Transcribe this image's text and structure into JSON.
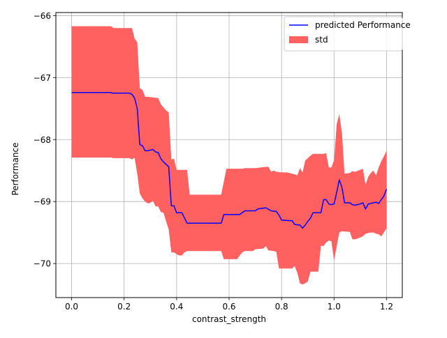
{
  "chart_data": {
    "type": "line",
    "title": "",
    "xlabel": "contrast_strength",
    "ylabel": "Performance",
    "xlim": [
      -0.06,
      1.26
    ],
    "ylim": [
      -70.55,
      -65.95
    ],
    "xticks": [
      0.0,
      0.2,
      0.4,
      0.6,
      0.8,
      1.0,
      1.2
    ],
    "xtick_labels": [
      "0.0",
      "0.2",
      "0.4",
      "0.6",
      "0.8",
      "1.0",
      "1.2"
    ],
    "yticks": [
      -70,
      -69,
      -68,
      -67,
      -66
    ],
    "ytick_labels": [
      "−70",
      "−69",
      "−68",
      "−67",
      "−66"
    ],
    "grid": true,
    "legend_position": "top-right",
    "series": [
      {
        "name": "predicted Performance",
        "kind": "line",
        "color": "#0000ff",
        "points": [
          [
            0.0,
            -67.24
          ],
          [
            0.15,
            -67.24
          ],
          [
            0.155,
            -67.25
          ],
          [
            0.22,
            -67.25
          ],
          [
            0.23,
            -67.27
          ],
          [
            0.24,
            -67.33
          ],
          [
            0.25,
            -67.5
          ],
          [
            0.26,
            -68.08
          ],
          [
            0.27,
            -68.1
          ],
          [
            0.28,
            -68.18
          ],
          [
            0.29,
            -68.18
          ],
          [
            0.31,
            -68.16
          ],
          [
            0.32,
            -68.2
          ],
          [
            0.33,
            -68.21
          ],
          [
            0.34,
            -68.31
          ],
          [
            0.35,
            -68.36
          ],
          [
            0.37,
            -68.44
          ],
          [
            0.38,
            -69.07
          ],
          [
            0.39,
            -69.07
          ],
          [
            0.4,
            -69.18
          ],
          [
            0.42,
            -69.18
          ],
          [
            0.44,
            -69.35
          ],
          [
            0.57,
            -69.35
          ],
          [
            0.58,
            -69.21
          ],
          [
            0.64,
            -69.21
          ],
          [
            0.66,
            -69.15
          ],
          [
            0.7,
            -69.15
          ],
          [
            0.71,
            -69.12
          ],
          [
            0.74,
            -69.1
          ],
          [
            0.76,
            -69.15
          ],
          [
            0.78,
            -69.16
          ],
          [
            0.79,
            -69.22
          ],
          [
            0.8,
            -69.3
          ],
          [
            0.84,
            -69.31
          ],
          [
            0.85,
            -69.37
          ],
          [
            0.87,
            -69.38
          ],
          [
            0.88,
            -69.43
          ],
          [
            0.89,
            -69.38
          ],
          [
            0.9,
            -69.32
          ],
          [
            0.91,
            -69.27
          ],
          [
            0.92,
            -69.18
          ],
          [
            0.95,
            -69.18
          ],
          [
            0.96,
            -68.97
          ],
          [
            0.97,
            -68.97
          ],
          [
            0.98,
            -69.04
          ],
          [
            0.99,
            -69.05
          ],
          [
            1.0,
            -69.04
          ],
          [
            1.01,
            -68.85
          ],
          [
            1.02,
            -68.65
          ],
          [
            1.03,
            -68.77
          ],
          [
            1.04,
            -69.02
          ],
          [
            1.06,
            -69.02
          ],
          [
            1.07,
            -69.05
          ],
          [
            1.08,
            -69.06
          ],
          [
            1.1,
            -69.04
          ],
          [
            1.11,
            -69.02
          ],
          [
            1.12,
            -69.12
          ],
          [
            1.13,
            -69.04
          ],
          [
            1.16,
            -69.01
          ],
          [
            1.17,
            -69.03
          ],
          [
            1.18,
            -68.97
          ],
          [
            1.19,
            -68.91
          ],
          [
            1.2,
            -68.8
          ]
        ]
      },
      {
        "name": "std",
        "kind": "band",
        "color": "#ff6161",
        "upper": [
          [
            0.0,
            -66.17
          ],
          [
            0.15,
            -66.17
          ],
          [
            0.16,
            -66.2
          ],
          [
            0.23,
            -66.2
          ],
          [
            0.24,
            -66.37
          ],
          [
            0.25,
            -66.43
          ],
          [
            0.26,
            -67.17
          ],
          [
            0.27,
            -67.2
          ],
          [
            0.28,
            -67.31
          ],
          [
            0.29,
            -67.31
          ],
          [
            0.31,
            -67.32
          ],
          [
            0.33,
            -67.33
          ],
          [
            0.34,
            -67.43
          ],
          [
            0.36,
            -67.53
          ],
          [
            0.37,
            -67.56
          ],
          [
            0.38,
            -68.32
          ],
          [
            0.39,
            -68.31
          ],
          [
            0.4,
            -68.49
          ],
          [
            0.44,
            -68.49
          ],
          [
            0.45,
            -68.89
          ],
          [
            0.57,
            -68.89
          ],
          [
            0.59,
            -68.47
          ],
          [
            0.65,
            -68.47
          ],
          [
            0.66,
            -68.46
          ],
          [
            0.7,
            -68.46
          ],
          [
            0.74,
            -68.44
          ],
          [
            0.75,
            -68.44
          ],
          [
            0.76,
            -68.52
          ],
          [
            0.77,
            -68.5
          ],
          [
            0.78,
            -68.52
          ],
          [
            0.8,
            -68.53
          ],
          [
            0.82,
            -68.53
          ],
          [
            0.85,
            -68.56
          ],
          [
            0.86,
            -68.58
          ],
          [
            0.87,
            -68.46
          ],
          [
            0.88,
            -68.53
          ],
          [
            0.89,
            -68.34
          ],
          [
            0.91,
            -68.26
          ],
          [
            0.92,
            -68.23
          ],
          [
            0.96,
            -68.23
          ],
          [
            0.97,
            -68.22
          ],
          [
            0.98,
            -68.45
          ],
          [
            0.99,
            -68.45
          ],
          [
            1.0,
            -68.33
          ],
          [
            1.01,
            -67.75
          ],
          [
            1.02,
            -67.59
          ],
          [
            1.03,
            -67.9
          ],
          [
            1.04,
            -68.55
          ],
          [
            1.06,
            -68.54
          ],
          [
            1.07,
            -68.51
          ],
          [
            1.08,
            -68.52
          ],
          [
            1.1,
            -68.49
          ],
          [
            1.11,
            -68.47
          ],
          [
            1.12,
            -68.73
          ],
          [
            1.13,
            -68.6
          ],
          [
            1.14,
            -68.54
          ],
          [
            1.15,
            -68.5
          ],
          [
            1.16,
            -68.58
          ],
          [
            1.17,
            -68.45
          ],
          [
            1.18,
            -68.35
          ],
          [
            1.19,
            -68.27
          ],
          [
            1.2,
            -68.18
          ]
        ],
        "lower": [
          [
            0.0,
            -68.29
          ],
          [
            0.15,
            -68.29
          ],
          [
            0.16,
            -68.3
          ],
          [
            0.22,
            -68.3
          ],
          [
            0.23,
            -68.32
          ],
          [
            0.24,
            -68.29
          ],
          [
            0.25,
            -68.55
          ],
          [
            0.26,
            -68.87
          ],
          [
            0.27,
            -68.95
          ],
          [
            0.28,
            -69.0
          ],
          [
            0.29,
            -69.03
          ],
          [
            0.3,
            -69.02
          ],
          [
            0.31,
            -68.99
          ],
          [
            0.32,
            -69.08
          ],
          [
            0.33,
            -69.08
          ],
          [
            0.34,
            -69.17
          ],
          [
            0.35,
            -69.18
          ],
          [
            0.36,
            -69.32
          ],
          [
            0.37,
            -69.45
          ],
          [
            0.38,
            -69.82
          ],
          [
            0.39,
            -69.82
          ],
          [
            0.4,
            -69.85
          ],
          [
            0.41,
            -69.87
          ],
          [
            0.42,
            -69.87
          ],
          [
            0.43,
            -69.82
          ],
          [
            0.44,
            -69.8
          ],
          [
            0.57,
            -69.8
          ],
          [
            0.58,
            -69.93
          ],
          [
            0.63,
            -69.93
          ],
          [
            0.65,
            -69.82
          ],
          [
            0.66,
            -69.8
          ],
          [
            0.69,
            -69.8
          ],
          [
            0.7,
            -69.77
          ],
          [
            0.73,
            -69.76
          ],
          [
            0.74,
            -69.72
          ],
          [
            0.75,
            -69.79
          ],
          [
            0.77,
            -69.8
          ],
          [
            0.78,
            -69.81
          ],
          [
            0.79,
            -70.08
          ],
          [
            0.84,
            -70.08
          ],
          [
            0.85,
            -70.04
          ],
          [
            0.86,
            -70.15
          ],
          [
            0.87,
            -70.32
          ],
          [
            0.88,
            -70.34
          ],
          [
            0.89,
            -70.32
          ],
          [
            0.9,
            -70.29
          ],
          [
            0.91,
            -70.13
          ],
          [
            0.94,
            -70.13
          ],
          [
            0.95,
            -69.71
          ],
          [
            0.96,
            -69.72
          ],
          [
            0.97,
            -69.66
          ],
          [
            0.98,
            -69.63
          ],
          [
            0.99,
            -69.64
          ],
          [
            1.0,
            -69.95
          ],
          [
            1.01,
            -69.72
          ],
          [
            1.02,
            -69.5
          ],
          [
            1.03,
            -69.48
          ],
          [
            1.06,
            -69.49
          ],
          [
            1.07,
            -69.61
          ],
          [
            1.08,
            -69.61
          ],
          [
            1.1,
            -69.58
          ],
          [
            1.11,
            -69.56
          ],
          [
            1.12,
            -69.52
          ],
          [
            1.14,
            -69.5
          ],
          [
            1.15,
            -69.5
          ],
          [
            1.16,
            -69.52
          ],
          [
            1.17,
            -69.53
          ],
          [
            1.18,
            -69.56
          ],
          [
            1.19,
            -69.5
          ],
          [
            1.2,
            -69.43
          ]
        ]
      }
    ]
  }
}
